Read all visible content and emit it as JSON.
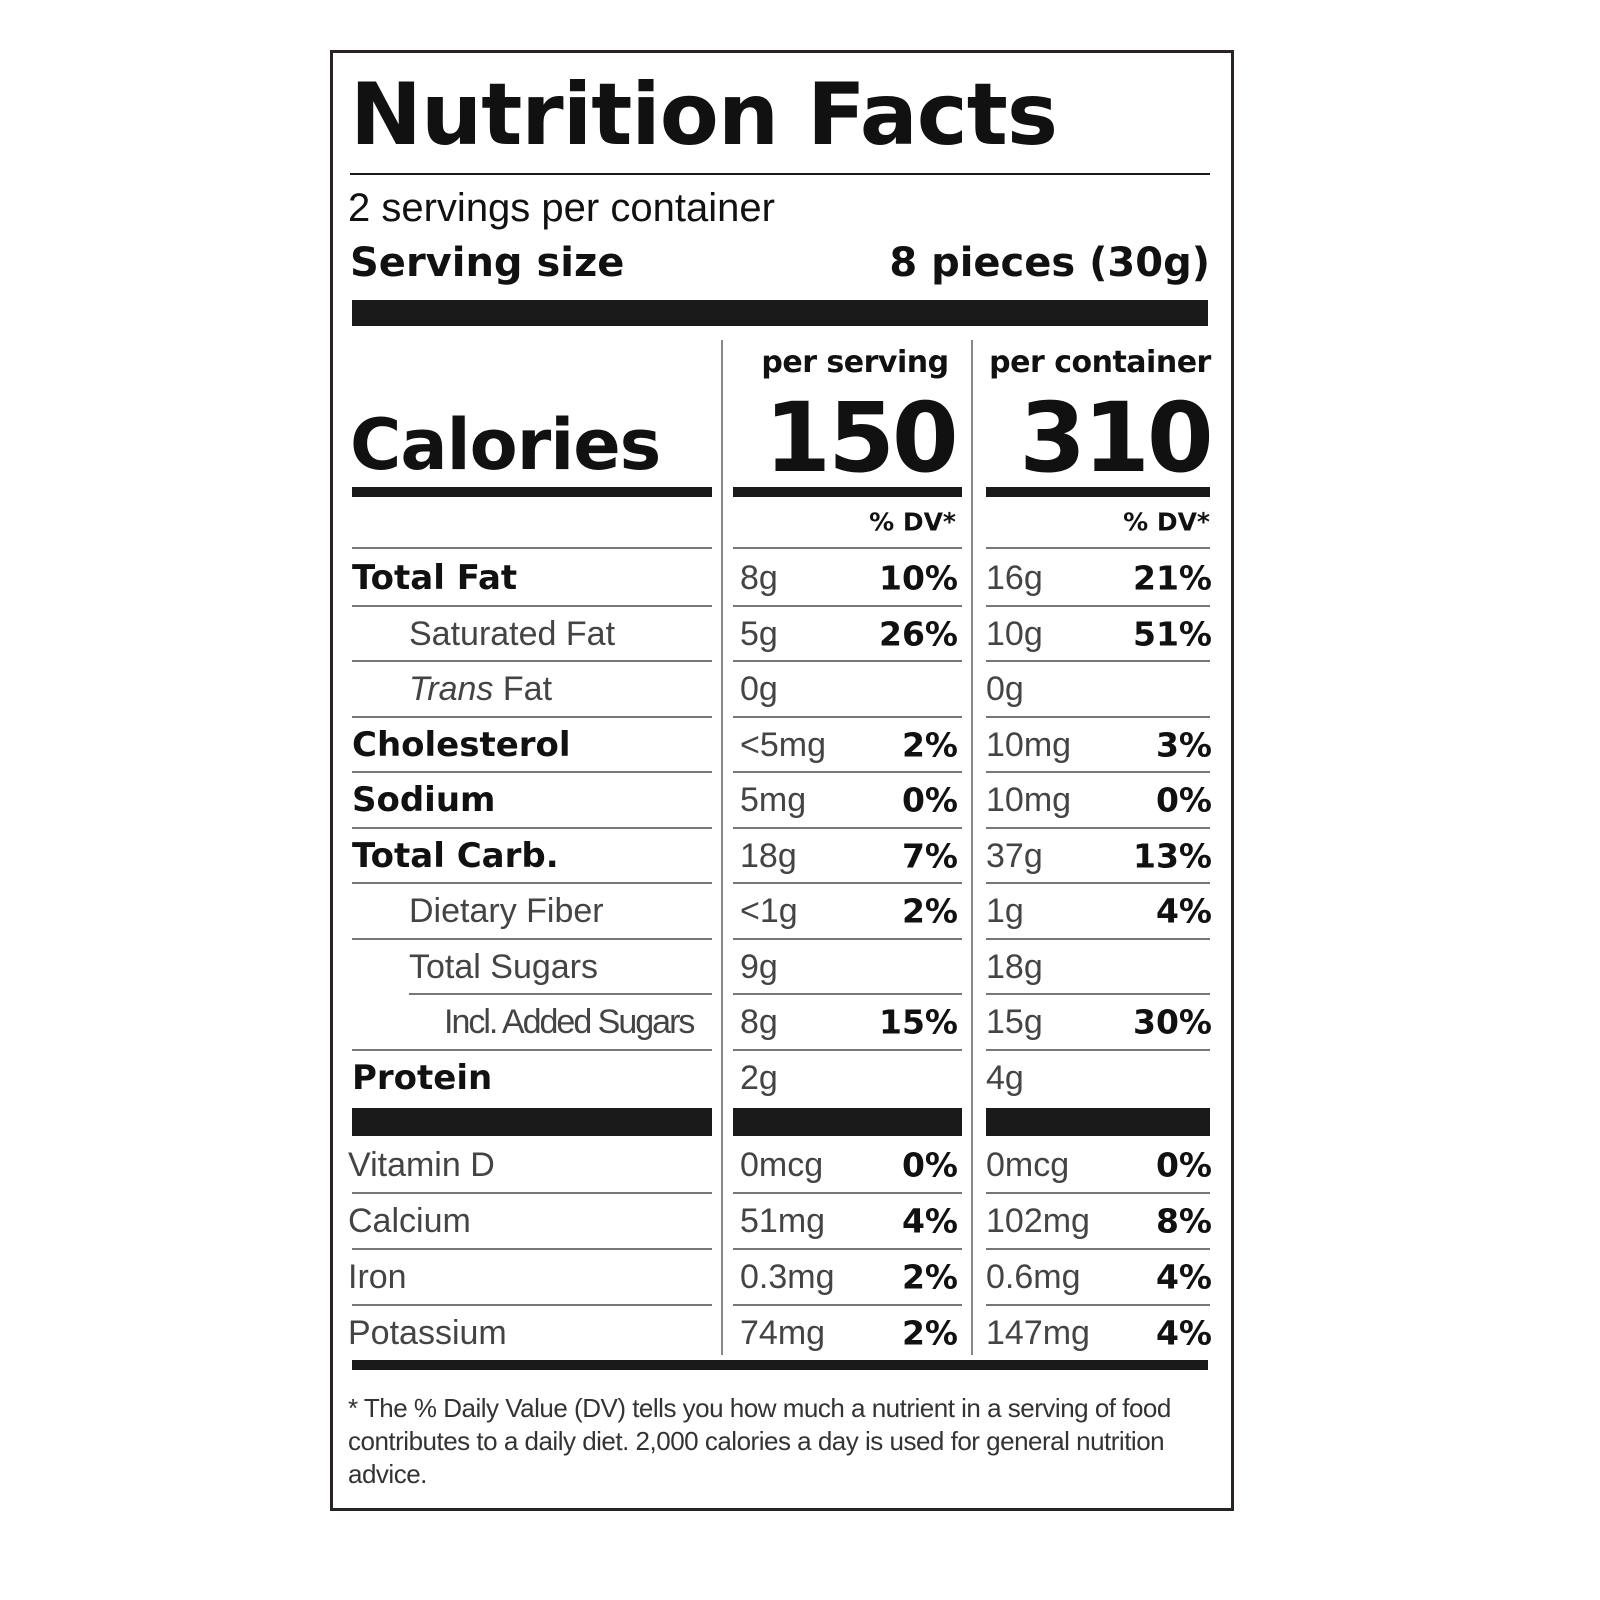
{
  "title": "Nutrition Facts",
  "servings": "2 servings per container",
  "serving_size": {
    "label": "Serving size",
    "value": "8 pieces (30g)"
  },
  "calories_label": "Calories",
  "columns": [
    {
      "heading": "per serving",
      "calories": "150",
      "dv_heading": "% DV*"
    },
    {
      "heading": "per container",
      "calories": "310",
      "dv_heading": "% DV*"
    }
  ],
  "nutrients": [
    {
      "name": "Total Fat",
      "amounts": [
        {
          "amount": "8g",
          "dv": "10%"
        },
        {
          "amount": "16g",
          "dv": "21%"
        }
      ],
      "sub": [
        {
          "name": "Saturated Fat",
          "amounts": [
            {
              "amount": "5g",
              "dv": "26%"
            },
            {
              "amount": "10g",
              "dv": "51%"
            }
          ]
        },
        {
          "name": [
            "Trans",
            "Fat"
          ],
          "amounts": [
            {
              "amount": "0g"
            },
            {
              "amount": "0g"
            }
          ]
        }
      ]
    },
    {
      "name": "Cholesterol",
      "amounts": [
        {
          "amount": "<5mg",
          "dv": "2%"
        },
        {
          "amount": "10mg",
          "dv": "3%"
        }
      ]
    },
    {
      "name": "Sodium",
      "amounts": [
        {
          "amount": "5mg",
          "dv": "0%"
        },
        {
          "amount": "10mg",
          "dv": "0%"
        }
      ]
    },
    {
      "name": "Total Carb.",
      "amounts": [
        {
          "amount": "18g",
          "dv": "7%"
        },
        {
          "amount": "37g",
          "dv": "13%"
        }
      ],
      "sub": [
        {
          "name": "Dietary Fiber",
          "amounts": [
            {
              "amount": "<1g",
              "dv": "2%"
            },
            {
              "amount": "1g",
              "dv": "4%"
            }
          ]
        },
        {
          "name": "Total Sugars",
          "amounts": [
            {
              "amount": "9g"
            },
            {
              "amount": "18g"
            }
          ],
          "sub": [
            {
              "name": "Incl. Added Sugars",
              "amounts": [
                {
                  "amount": "8g",
                  "dv": "15%"
                },
                {
                  "amount": "15g",
                  "dv": "30%"
                }
              ]
            }
          ]
        }
      ]
    },
    {
      "name": "Protein",
      "amounts": [
        {
          "amount": "2g"
        },
        {
          "amount": "4g"
        }
      ]
    }
  ],
  "vitamins": [
    {
      "name": "Vitamin D",
      "amounts": [
        {
          "amount": "0mcg",
          "dv": "0%"
        },
        {
          "amount": "0mcg",
          "dv": "0%"
        }
      ]
    },
    {
      "name": "Calcium",
      "amounts": [
        {
          "amount": "51mg",
          "dv": "4%"
        },
        {
          "amount": "102mg",
          "dv": "8%"
        }
      ]
    },
    {
      "name": "Iron",
      "amounts": [
        {
          "amount": "0.3mg",
          "dv": "2%"
        },
        {
          "amount": "0.6mg",
          "dv": "4%"
        }
      ]
    },
    {
      "name": "Potassium",
      "amounts": [
        {
          "amount": "74mg",
          "dv": "2%"
        },
        {
          "amount": "147mg",
          "dv": "4%"
        }
      ]
    }
  ],
  "footnote": "* The % Daily Value (DV) tells you how much a nutrient in a serving of food contributes to a daily diet. 2,000 calories a day is used for general nutrition advice."
}
